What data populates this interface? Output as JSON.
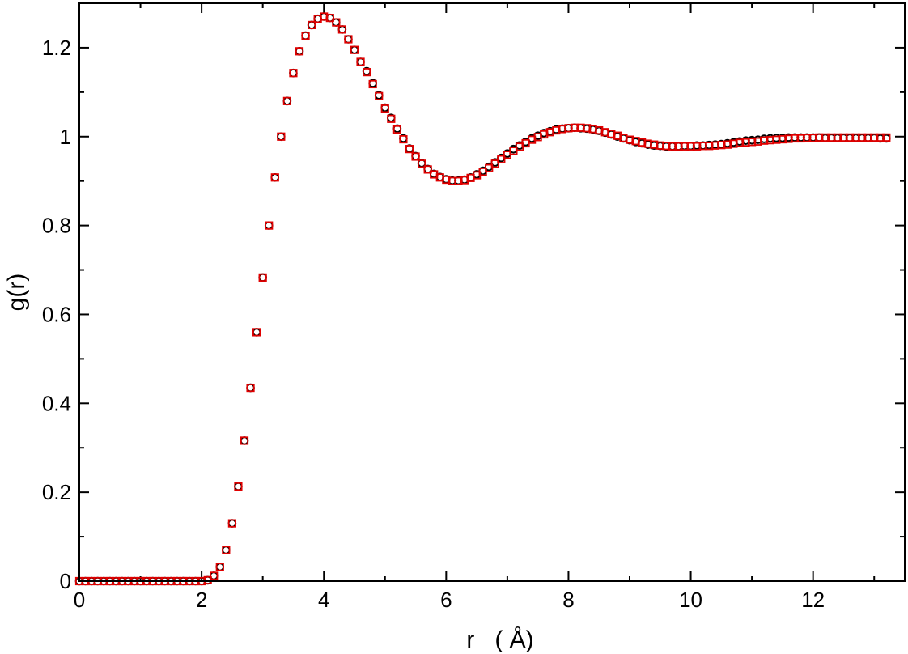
{
  "chart_data": {
    "type": "scatter",
    "title": "",
    "xlabel": "r   ( Å)",
    "ylabel": "g(r)",
    "xlim": [
      0,
      13.5
    ],
    "ylim": [
      0,
      1.3
    ],
    "xticks": [
      0,
      2,
      4,
      6,
      8,
      10,
      12
    ],
    "xtick_labels": [
      "0",
      "2",
      "4",
      "6",
      "8",
      "10",
      "12"
    ],
    "yticks": [
      0,
      0.2,
      0.4,
      0.6,
      0.8,
      1.0,
      1.2
    ],
    "ytick_labels": [
      "0",
      "0.2",
      "0.4",
      "0.6",
      "0.8",
      "1",
      "1.2"
    ],
    "grid": false,
    "legend": "none",
    "colors": {
      "series_black": "#000000",
      "series_red": "#e00000"
    },
    "series": [
      {
        "marker": "circle",
        "color": "#000000",
        "x": [
          0.0,
          0.1,
          0.2,
          0.3,
          0.4,
          0.5,
          0.6,
          0.7,
          0.8,
          0.9,
          1.0,
          1.1,
          1.2,
          1.3,
          1.4,
          1.5,
          1.6,
          1.7,
          1.8,
          1.9,
          2.0,
          2.1,
          2.2,
          2.3,
          2.4,
          2.5,
          2.6,
          2.7,
          2.8,
          2.9,
          3.0,
          3.1,
          3.2,
          3.3,
          3.4,
          3.5,
          3.6,
          3.7,
          3.8,
          3.9,
          4.0,
          4.1,
          4.2,
          4.3,
          4.4,
          4.5,
          4.6,
          4.7,
          4.8,
          4.9,
          5.0,
          5.1,
          5.2,
          5.3,
          5.4,
          5.5,
          5.6,
          5.7,
          5.8,
          5.9,
          6.0,
          6.1,
          6.2,
          6.3,
          6.4,
          6.5,
          6.6,
          6.7,
          6.8,
          6.9,
          7.0,
          7.1,
          7.2,
          7.3,
          7.4,
          7.5,
          7.6,
          7.7,
          7.8,
          7.9,
          8.0,
          8.1,
          8.2,
          8.3,
          8.4,
          8.5,
          8.6,
          8.7,
          8.8,
          8.9,
          9.0,
          9.1,
          9.2,
          9.3,
          9.4,
          9.5,
          9.6,
          9.7,
          9.8,
          9.9,
          10.0,
          10.1,
          10.2,
          10.3,
          10.4,
          10.5,
          10.6,
          10.7,
          10.8,
          10.9,
          11.0,
          11.1,
          11.2,
          11.3,
          11.4,
          11.5,
          11.6,
          11.7,
          11.8,
          11.9,
          12.0,
          12.1,
          12.2,
          12.3,
          12.4,
          12.5,
          12.6,
          12.7,
          12.8,
          12.9,
          13.0,
          13.1,
          13.2
        ],
        "values": [
          0.0,
          0.0,
          0.0,
          0.0,
          0.0,
          0.0,
          0.0,
          0.0,
          0.0,
          0.0,
          0.0,
          0.0,
          0.0,
          0.0,
          0.0,
          0.0,
          0.0,
          0.0,
          0.0,
          0.0,
          0.0,
          0.002,
          0.012,
          0.032,
          0.07,
          0.13,
          0.213,
          0.316,
          0.435,
          0.56,
          0.683,
          0.8,
          0.908,
          1.0,
          1.08,
          1.143,
          1.192,
          1.227,
          1.251,
          1.265,
          1.27,
          1.267,
          1.257,
          1.241,
          1.219,
          1.195,
          1.168,
          1.147,
          1.12,
          1.093,
          1.065,
          1.042,
          1.018,
          0.996,
          0.973,
          0.956,
          0.94,
          0.927,
          0.916,
          0.909,
          0.904,
          0.901,
          0.901,
          0.903,
          0.908,
          0.915,
          0.923,
          0.932,
          0.942,
          0.952,
          0.962,
          0.972,
          0.98,
          0.988,
          0.996,
          1.002,
          1.008,
          1.012,
          1.016,
          1.018,
          1.019,
          1.02,
          1.019,
          1.018,
          1.016,
          1.013,
          1.009,
          1.005,
          1.0,
          0.996,
          0.992,
          0.988,
          0.985,
          0.982,
          0.98,
          0.979,
          0.978,
          0.978,
          0.978,
          0.979,
          0.979,
          0.98,
          0.98,
          0.981,
          0.982,
          0.983,
          0.985,
          0.987,
          0.989,
          0.991,
          0.992,
          0.993,
          0.995,
          0.996,
          0.997,
          0.997,
          0.998,
          0.998,
          0.998,
          0.998,
          0.998,
          0.998,
          0.997,
          0.997,
          0.997,
          0.997,
          0.997,
          0.997,
          0.997,
          0.997,
          0.997,
          0.996,
          0.996
        ]
      },
      {
        "marker": "square",
        "color": "#e00000",
        "x": [
          0.0,
          0.1,
          0.2,
          0.3,
          0.4,
          0.5,
          0.6,
          0.7,
          0.8,
          0.9,
          1.0,
          1.1,
          1.2,
          1.3,
          1.4,
          1.5,
          1.6,
          1.7,
          1.8,
          1.9,
          2.0,
          2.1,
          2.2,
          2.3,
          2.4,
          2.5,
          2.6,
          2.7,
          2.8,
          2.9,
          3.0,
          3.1,
          3.2,
          3.3,
          3.4,
          3.5,
          3.6,
          3.7,
          3.8,
          3.9,
          4.0,
          4.1,
          4.2,
          4.3,
          4.4,
          4.5,
          4.6,
          4.7,
          4.8,
          4.9,
          5.0,
          5.1,
          5.2,
          5.3,
          5.4,
          5.5,
          5.6,
          5.7,
          5.8,
          5.9,
          6.0,
          6.1,
          6.2,
          6.3,
          6.4,
          6.5,
          6.6,
          6.7,
          6.8,
          6.9,
          7.0,
          7.1,
          7.2,
          7.3,
          7.4,
          7.5,
          7.6,
          7.7,
          7.8,
          7.9,
          8.0,
          8.1,
          8.2,
          8.3,
          8.4,
          8.5,
          8.6,
          8.7,
          8.8,
          8.9,
          9.0,
          9.1,
          9.2,
          9.3,
          9.4,
          9.5,
          9.6,
          9.7,
          9.8,
          9.9,
          10.0,
          10.1,
          10.2,
          10.3,
          10.4,
          10.5,
          10.6,
          10.7,
          10.8,
          10.9,
          11.0,
          11.1,
          11.2,
          11.3,
          11.4,
          11.5,
          11.6,
          11.7,
          11.8,
          11.9,
          12.0,
          12.1,
          12.2,
          12.3,
          12.4,
          12.5,
          12.6,
          12.7,
          12.8,
          12.9,
          13.0,
          13.1,
          13.2
        ],
        "values": [
          0.0,
          0.0,
          0.0,
          0.0,
          0.0,
          0.0,
          0.0,
          0.0,
          0.0,
          0.0,
          0.0,
          0.0,
          0.0,
          0.0,
          0.0,
          0.0,
          0.0,
          0.0,
          0.0,
          0.0,
          0.0,
          0.002,
          0.012,
          0.032,
          0.07,
          0.13,
          0.213,
          0.316,
          0.435,
          0.56,
          0.683,
          0.8,
          0.908,
          1.0,
          1.08,
          1.143,
          1.192,
          1.227,
          1.251,
          1.265,
          1.27,
          1.267,
          1.257,
          1.241,
          1.219,
          1.195,
          1.168,
          1.145,
          1.118,
          1.091,
          1.063,
          1.04,
          1.016,
          0.994,
          0.972,
          0.955,
          0.939,
          0.926,
          0.915,
          0.908,
          0.903,
          0.9,
          0.9,
          0.902,
          0.907,
          0.913,
          0.921,
          0.929,
          0.939,
          0.949,
          0.959,
          0.968,
          0.977,
          0.985,
          0.993,
          0.999,
          1.005,
          1.01,
          1.014,
          1.017,
          1.019,
          1.02,
          1.02,
          1.019,
          1.017,
          1.014,
          1.01,
          1.006,
          1.002,
          0.997,
          0.993,
          0.99,
          0.987,
          0.984,
          0.982,
          0.98,
          0.979,
          0.978,
          0.978,
          0.978,
          0.978,
          0.978,
          0.979,
          0.979,
          0.98,
          0.981,
          0.982,
          0.984,
          0.986,
          0.987,
          0.988,
          0.989,
          0.991,
          0.992,
          0.993,
          0.994,
          0.995,
          0.996,
          0.996,
          0.997,
          0.997,
          0.998,
          0.998,
          0.998,
          0.998,
          0.998,
          0.998,
          0.998,
          0.998,
          0.998,
          0.998,
          0.998,
          0.998
        ]
      }
    ]
  }
}
